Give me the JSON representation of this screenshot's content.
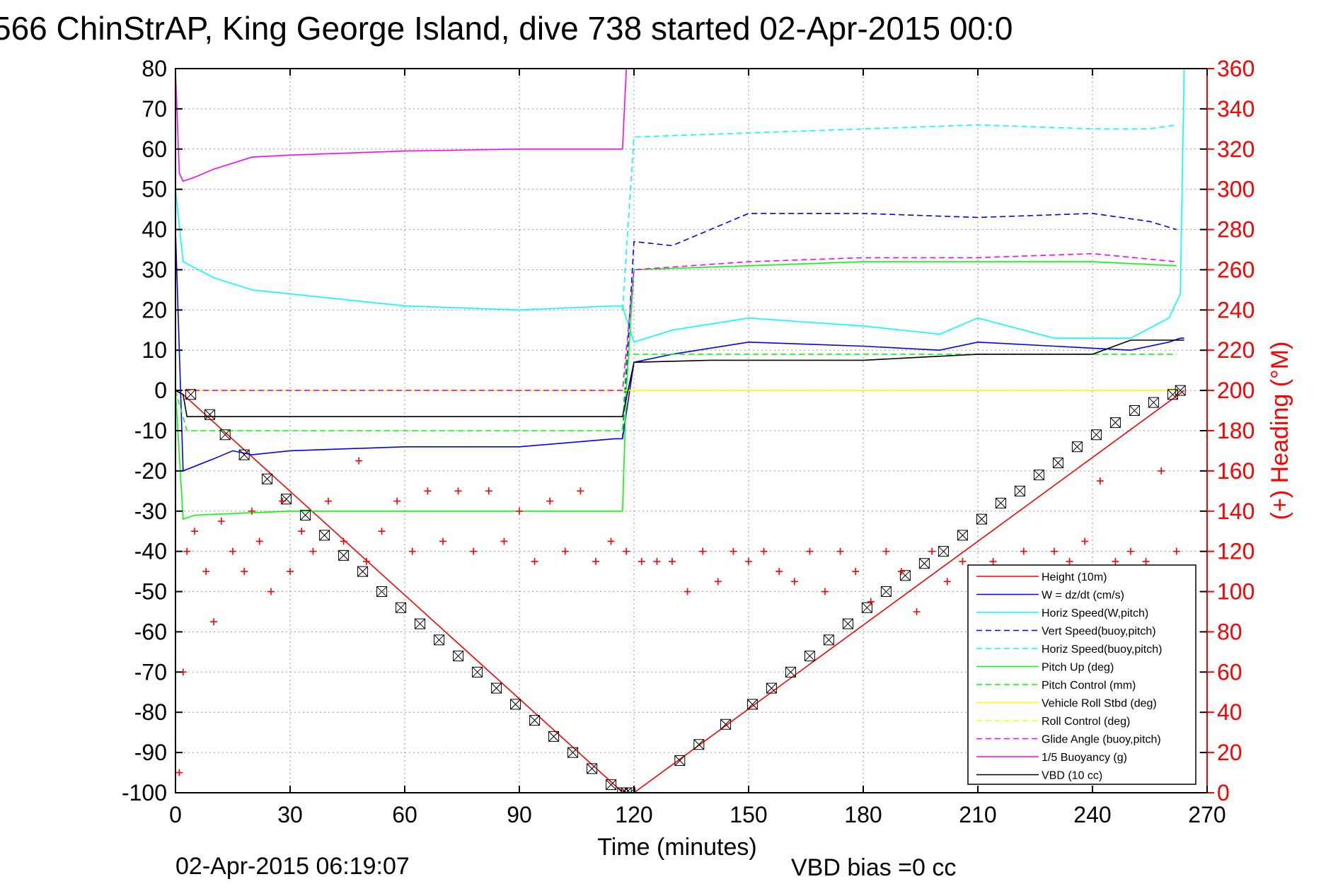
{
  "chart_data": {
    "type": "line",
    "title": "566 ChinStrAP, King George Island, dive 738 started 02-Apr-2015 00:0",
    "xlabel": "Time (minutes)",
    "ylabel_right": "(+) Heading (°M)",
    "xlim": [
      0,
      270
    ],
    "ylim_left": [
      -100,
      80
    ],
    "ylim_right": [
      0,
      360
    ],
    "x_ticks": [
      0,
      30,
      60,
      90,
      120,
      150,
      180,
      210,
      240,
      270
    ],
    "y_ticks_left": [
      80,
      70,
      60,
      50,
      40,
      30,
      20,
      10,
      0,
      -10,
      -20,
      -30,
      -40,
      -50,
      -60,
      -70,
      -80,
      -90,
      -100
    ],
    "y_ticks_right": [
      360,
      340,
      320,
      300,
      280,
      260,
      240,
      220,
      200,
      180,
      160,
      140,
      120,
      100,
      80,
      60,
      40,
      20,
      0
    ],
    "grid": true,
    "legend_position": "bottom-right",
    "footer_date": "02-Apr-2015 06:19:07",
    "footer_note": "VBD bias =0 cc",
    "series": [
      {
        "name": "Height (10m)",
        "color": "#ff0000",
        "style": "solid",
        "axis": "left",
        "x": [
          0,
          2,
          116,
          118,
          120,
          264
        ],
        "y": [
          0,
          -1,
          -99,
          -100,
          -100,
          0
        ]
      },
      {
        "name": "W = dz/dt (cm/s)",
        "color": "#0000ff",
        "style": "solid",
        "axis": "left",
        "x": [
          0,
          2,
          10,
          15,
          20,
          30,
          60,
          90,
          115,
          117,
          120,
          130,
          150,
          180,
          200,
          210,
          230,
          250,
          260,
          263,
          264
        ],
        "y": [
          40,
          -20,
          -17,
          -15,
          -16,
          -15,
          -14,
          -14,
          -12,
          -12,
          7,
          9,
          12,
          11,
          10,
          12,
          11,
          10,
          12,
          13,
          13
        ]
      },
      {
        "name": "Horiz Speed(W,pitch)",
        "color": "#00ffff",
        "style": "solid",
        "axis": "left",
        "x": [
          0,
          2,
          10,
          20,
          30,
          60,
          90,
          115,
          117,
          120,
          130,
          150,
          180,
          200,
          210,
          230,
          250,
          260,
          263,
          264
        ],
        "y": [
          50,
          32,
          28,
          25,
          24,
          21,
          20,
          21,
          21,
          12,
          15,
          18,
          16,
          14,
          18,
          13,
          13,
          18,
          24,
          80
        ]
      },
      {
        "name": "Vert Speed(buoy,pitch)",
        "color": "#0000ff",
        "style": "dashed",
        "axis": "left",
        "x": [
          117,
          120,
          130,
          140,
          150,
          180,
          210,
          240,
          255,
          262
        ],
        "y": [
          -12,
          37,
          36,
          40,
          44,
          44,
          43,
          44,
          42,
          40
        ]
      },
      {
        "name": "Horiz Speed(buoy,pitch)",
        "color": "#00ffff",
        "style": "dashed",
        "axis": "left",
        "x": [
          117,
          120,
          150,
          180,
          210,
          240,
          255,
          262
        ],
        "y": [
          20,
          63,
          64,
          65,
          66,
          65,
          65,
          66
        ]
      },
      {
        "name": "Pitch Up (deg)",
        "color": "#00ff00",
        "style": "solid",
        "axis": "left",
        "x": [
          0,
          2,
          5,
          30,
          60,
          90,
          115,
          117,
          118,
          120,
          150,
          180,
          210,
          240,
          262
        ],
        "y": [
          0,
          -32,
          -31,
          -30,
          -30,
          -30,
          -30,
          -30,
          0,
          30,
          31,
          32,
          32,
          32,
          31
        ]
      },
      {
        "name": "Pitch Control (mm)",
        "color": "#00ff00",
        "style": "dashed",
        "axis": "left",
        "x": [
          0,
          3,
          117,
          118,
          120,
          150,
          180,
          210,
          262
        ],
        "y": [
          0,
          -10,
          -10,
          9,
          9,
          9,
          9,
          9,
          9
        ]
      },
      {
        "name": "Vehicle Roll Stbd (deg)",
        "color": "#ffff00",
        "style": "solid",
        "axis": "left",
        "x": [
          0,
          5,
          117,
          118,
          120,
          262
        ],
        "y": [
          0,
          0,
          0,
          0,
          0,
          0
        ]
      },
      {
        "name": "Roll Control (deg)",
        "color": "#ffff00",
        "style": "dashed",
        "axis": "left",
        "x": [
          0,
          117,
          120,
          262
        ],
        "y": [
          0,
          0,
          0,
          0
        ]
      },
      {
        "name": "Glide Angle (buoy,pitch)",
        "color": "#ff00ff",
        "style": "dashed",
        "axis": "left",
        "x": [
          0,
          117,
          120,
          150,
          180,
          210,
          240,
          262
        ],
        "y": [
          0,
          0,
          30,
          32,
          33,
          33,
          34,
          32
        ]
      },
      {
        "name": "1/5 Buoyancy (g)",
        "color": "#ff00ff",
        "style": "solid",
        "axis": "left",
        "x": [
          0,
          1,
          2,
          5,
          10,
          20,
          30,
          60,
          90,
          117,
          118
        ],
        "y": [
          80,
          54,
          52,
          53,
          55,
          58,
          58.5,
          59.5,
          60,
          60,
          80
        ]
      },
      {
        "name": "VBD (10 cc)",
        "color": "#000000",
        "style": "solid",
        "axis": "left",
        "x": [
          0,
          2,
          3,
          117,
          118,
          120,
          140,
          180,
          190,
          210,
          240,
          250,
          264
        ],
        "y": [
          0,
          -1,
          -6.5,
          -6.5,
          -2,
          7,
          7.5,
          7.5,
          8,
          9,
          9,
          12.5,
          12.5
        ]
      }
    ],
    "heading_series": {
      "name": "(+) Heading (°M)",
      "color": "#ff0000",
      "marker": "+",
      "axis": "right",
      "x": [
        1,
        2,
        3,
        5,
        8,
        10,
        12,
        15,
        18,
        20,
        22,
        25,
        28,
        30,
        33,
        36,
        40,
        44,
        48,
        50,
        54,
        58,
        62,
        66,
        70,
        74,
        78,
        82,
        86,
        90,
        94,
        98,
        102,
        106,
        110,
        114,
        118,
        122,
        126,
        130,
        134,
        138,
        142,
        146,
        150,
        154,
        158,
        162,
        166,
        170,
        174,
        178,
        182,
        186,
        190,
        194,
        198,
        202,
        206,
        210,
        214,
        218,
        222,
        226,
        230,
        234,
        238,
        242,
        246,
        250,
        254,
        258,
        262
      ],
      "y": [
        10,
        60,
        120,
        130,
        110,
        85,
        135,
        120,
        110,
        140,
        125,
        100,
        145,
        110,
        130,
        120,
        145,
        125,
        165,
        115,
        130,
        145,
        120,
        150,
        125,
        150,
        120,
        150,
        125,
        140,
        115,
        145,
        120,
        150,
        115,
        125,
        120,
        115,
        115,
        115,
        100,
        120,
        105,
        120,
        115,
        120,
        110,
        105,
        120,
        100,
        120,
        110,
        95,
        120,
        110,
        90,
        120,
        105,
        115,
        95,
        115,
        110,
        120,
        110,
        120,
        115,
        125,
        155,
        115,
        120,
        115,
        160,
        120
      ]
    },
    "depth_markers": {
      "marker": "box-x",
      "x": [
        4,
        9,
        13,
        18,
        24,
        29,
        34,
        39,
        44,
        49,
        54,
        59,
        64,
        69,
        74,
        79,
        84,
        89,
        94,
        99,
        104,
        109,
        114,
        117,
        118,
        119,
        132,
        137,
        144,
        151,
        156,
        161,
        166,
        171,
        176,
        181,
        186,
        191,
        196,
        201,
        206,
        211,
        216,
        221,
        226,
        231,
        236,
        241,
        246,
        251,
        256,
        261,
        263
      ],
      "y": [
        -1,
        -6,
        -11,
        -16,
        -22,
        -27,
        -31,
        -36,
        -41,
        -45,
        -50,
        -54,
        -58,
        -62,
        -66,
        -70,
        -74,
        -78,
        -82,
        -86,
        -90,
        -94,
        -98,
        -100,
        -100,
        -100,
        -92,
        -88,
        -83,
        -78,
        -74,
        -70,
        -66,
        -62,
        -58,
        -54,
        -50,
        -46,
        -43,
        -40,
        -36,
        -32,
        -28,
        -25,
        -21,
        -18,
        -14,
        -11,
        -8,
        -5,
        -3,
        -1,
        0
      ]
    }
  }
}
